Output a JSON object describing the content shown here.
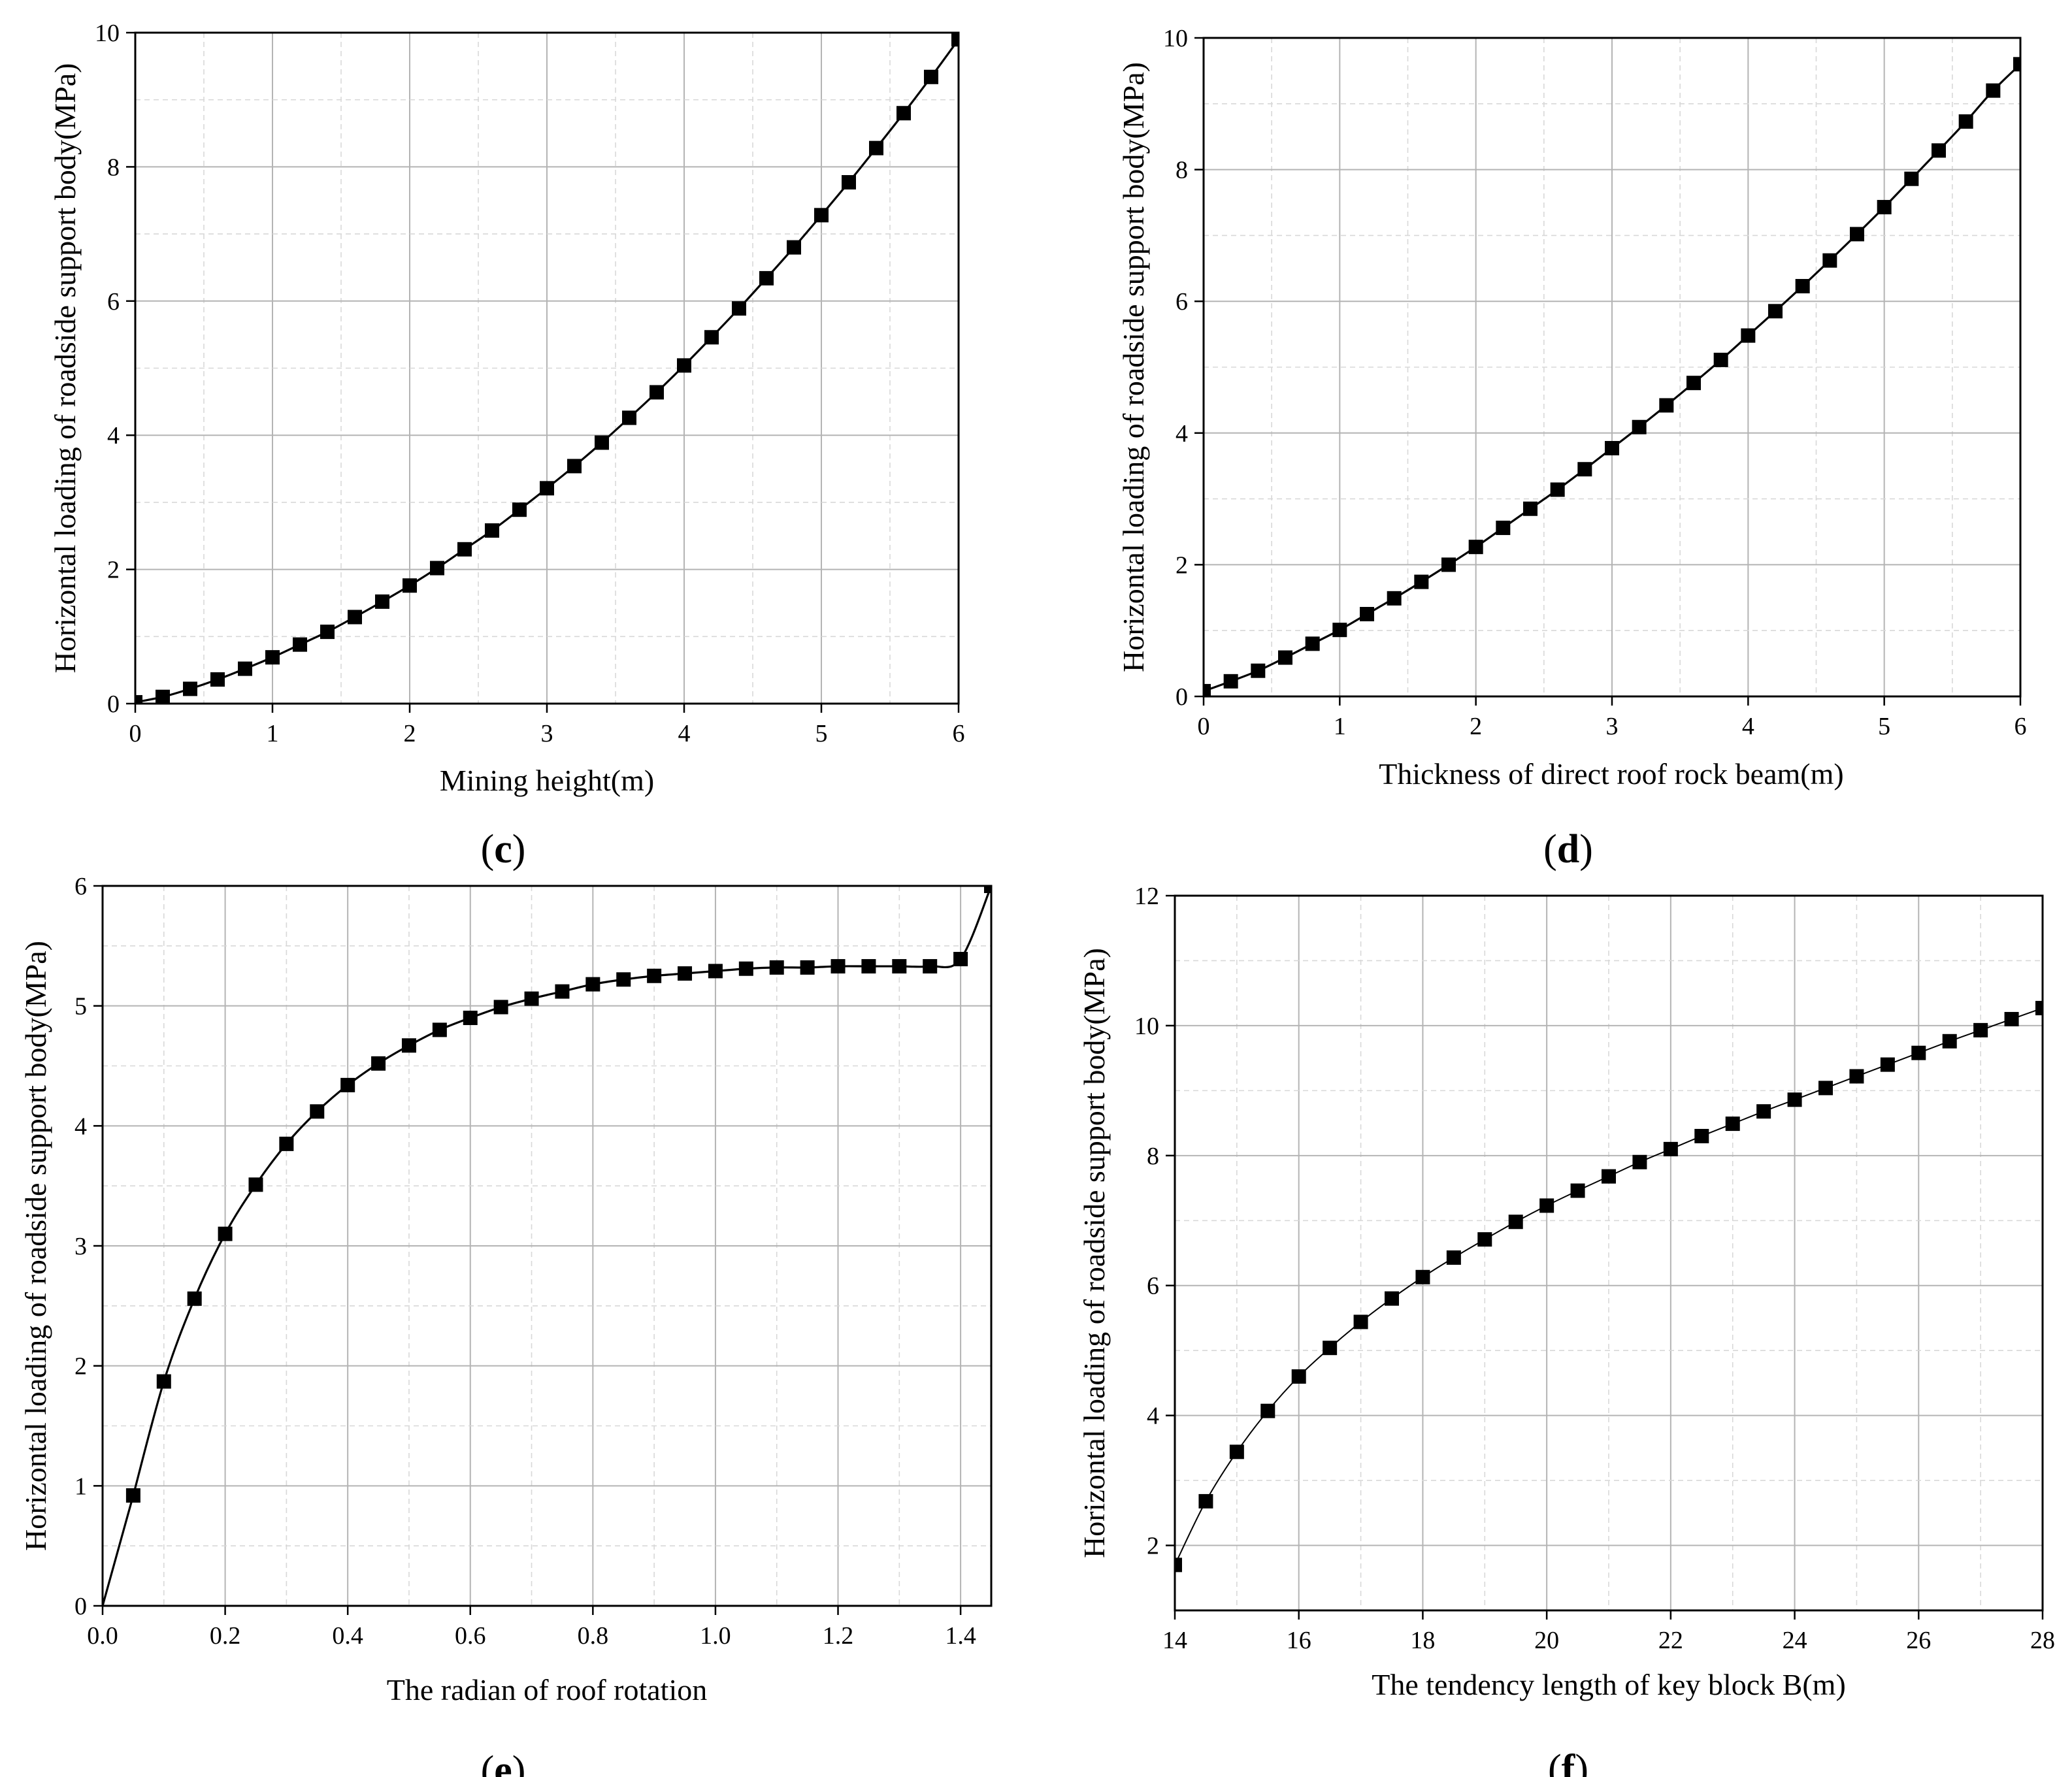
{
  "chart_data": [
    {
      "type": "line",
      "panel_label": "c",
      "title": "",
      "xlabel": "Mining height(m)",
      "ylabel": "Horizontal loading of roadside support body(MPa)",
      "xlim": [
        0,
        6
      ],
      "ylim": [
        0,
        10
      ],
      "xticks": [
        0,
        1,
        2,
        3,
        4,
        5,
        6
      ],
      "xtick_labels": [
        "0",
        "1",
        "2",
        "3",
        "4",
        "5",
        "6"
      ],
      "yticks": [
        0,
        2,
        4,
        6,
        8,
        10
      ],
      "ytick_labels": [
        "0",
        "2",
        "4",
        "6",
        "8",
        "10"
      ],
      "grid": true,
      "marker": "square",
      "series": [
        {
          "name": "",
          "x": [
            0,
            0.2,
            0.4,
            0.6,
            0.8,
            1.0,
            1.2,
            1.4,
            1.6,
            1.8,
            2.0,
            2.2,
            2.4,
            2.6,
            2.8,
            3.0,
            3.2,
            3.4,
            3.6,
            3.8,
            4.0,
            4.2,
            4.4,
            4.6,
            4.8,
            5.0,
            5.2,
            5.4,
            5.6,
            5.8,
            6.0
          ],
          "values": [
            0.02,
            0.1,
            0.22,
            0.36,
            0.52,
            0.69,
            0.88,
            1.07,
            1.29,
            1.52,
            1.76,
            2.02,
            2.3,
            2.58,
            2.89,
            3.21,
            3.54,
            3.89,
            4.26,
            4.64,
            5.04,
            5.46,
            5.89,
            6.34,
            6.8,
            7.28,
            7.77,
            8.28,
            8.8,
            9.34,
            9.9
          ]
        }
      ]
    },
    {
      "type": "line",
      "panel_label": "d",
      "title": "",
      "xlabel": "Thickness of direct roof rock beam(m)",
      "ylabel": "Horizontal loading of roadside support body(MPa)",
      "xlim": [
        0,
        6
      ],
      "ylim": [
        0,
        10
      ],
      "xticks": [
        0,
        1,
        2,
        3,
        4,
        5,
        6
      ],
      "xtick_labels": [
        "0",
        "1",
        "2",
        "3",
        "4",
        "5",
        "6"
      ],
      "yticks": [
        0,
        2,
        4,
        6,
        8,
        10
      ],
      "ytick_labels": [
        "0",
        "2",
        "4",
        "6",
        "8",
        "10"
      ],
      "grid": true,
      "marker": "square",
      "series": [
        {
          "name": "",
          "x": [
            0,
            0.2,
            0.4,
            0.6,
            0.8,
            1.0,
            1.2,
            1.4,
            1.6,
            1.8,
            2.0,
            2.2,
            2.4,
            2.6,
            2.8,
            3.0,
            3.2,
            3.4,
            3.6,
            3.8,
            4.0,
            4.2,
            4.4,
            4.6,
            4.8,
            5.0,
            5.2,
            5.4,
            5.6,
            5.8,
            6.0
          ],
          "values": [
            0.08,
            0.23,
            0.39,
            0.59,
            0.8,
            1.01,
            1.25,
            1.49,
            1.74,
            2.0,
            2.27,
            2.56,
            2.85,
            3.14,
            3.45,
            3.77,
            4.09,
            4.42,
            4.76,
            5.11,
            5.48,
            5.85,
            6.23,
            6.62,
            7.02,
            7.43,
            7.86,
            8.29,
            8.73,
            9.2,
            9.6
          ]
        }
      ]
    },
    {
      "type": "line",
      "panel_label": "e",
      "title": "",
      "xlabel": "The radian of roof rotation",
      "ylabel": "Horizontal loading of roadside support body(MPa)",
      "xlim": [
        0,
        1.45
      ],
      "ylim": [
        0,
        6
      ],
      "xticks": [
        0,
        0.2,
        0.4,
        0.6,
        0.8,
        1.0,
        1.2,
        1.4
      ],
      "xtick_labels": [
        "0.0",
        "0.2",
        "0.4",
        "0.6",
        "0.8",
        "1.0",
        "1.2",
        "1.4"
      ],
      "yticks": [
        0,
        1,
        2,
        3,
        4,
        5,
        6
      ],
      "ytick_labels": [
        "0",
        "1",
        "2",
        "3",
        "4",
        "5",
        "6"
      ],
      "grid": true,
      "marker": "square",
      "series": [
        {
          "name": "",
          "x": [
            0.05,
            0.1,
            0.15,
            0.2,
            0.25,
            0.3,
            0.35,
            0.4,
            0.45,
            0.5,
            0.55,
            0.6,
            0.65,
            0.7,
            0.75,
            0.8,
            0.85,
            0.9,
            0.95,
            1.0,
            1.05,
            1.1,
            1.15,
            1.2,
            1.25,
            1.3,
            1.35,
            1.4,
            1.45
          ],
          "values": [
            0.92,
            1.87,
            2.56,
            3.1,
            3.51,
            3.85,
            4.12,
            4.34,
            4.52,
            4.67,
            4.8,
            4.9,
            4.99,
            5.06,
            5.12,
            5.18,
            5.22,
            5.25,
            5.27,
            5.29,
            5.31,
            5.32,
            5.32,
            5.33,
            5.33,
            5.33,
            5.33,
            5.39,
            6.0
          ]
        }
      ]
    },
    {
      "type": "line",
      "panel_label": "f",
      "title": "",
      "xlabel": "The tendency length of key block B(m)",
      "ylabel": "Horizontal loading of roadside support body(MPa)",
      "xlim": [
        14,
        28
      ],
      "ylim": [
        1,
        12
      ],
      "xticks": [
        14,
        16,
        18,
        20,
        22,
        24,
        26,
        28
      ],
      "xtick_labels": [
        "14",
        "16",
        "18",
        "20",
        "22",
        "24",
        "26",
        "28"
      ],
      "yticks": [
        2,
        4,
        6,
        8,
        10,
        12
      ],
      "ytick_labels": [
        "2",
        "4",
        "6",
        "8",
        "10",
        "12"
      ],
      "grid": true,
      "marker": "square",
      "series": [
        {
          "name": "",
          "x": [
            14.0,
            14.5,
            15.0,
            15.5,
            16.0,
            16.5,
            17.0,
            17.5,
            18.0,
            18.5,
            19.0,
            19.5,
            20.0,
            20.5,
            21.0,
            21.5,
            22.0,
            22.5,
            23.0,
            23.5,
            24.0,
            24.5,
            25.0,
            25.5,
            26.0,
            26.5,
            27.0,
            27.5,
            28.0
          ],
          "values": [
            1.7,
            2.68,
            3.44,
            4.07,
            4.6,
            5.04,
            5.44,
            5.8,
            6.13,
            6.43,
            6.71,
            6.98,
            7.23,
            7.46,
            7.68,
            7.9,
            8.1,
            8.3,
            8.49,
            8.68,
            8.86,
            9.04,
            9.22,
            9.4,
            9.58,
            9.76,
            9.93,
            10.1,
            10.27
          ]
        }
      ]
    }
  ]
}
